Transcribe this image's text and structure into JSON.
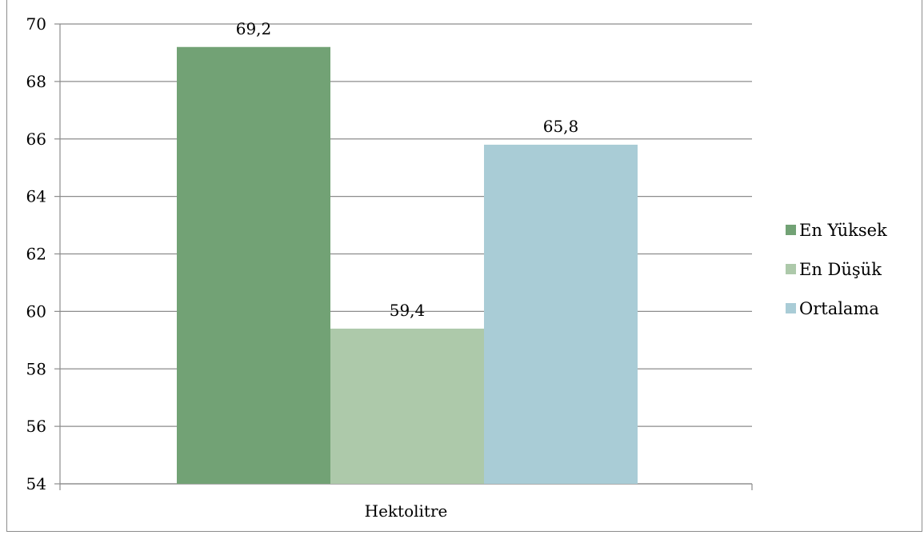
{
  "chart_data": {
    "type": "bar",
    "title": "",
    "xlabel": "",
    "ylabel": "",
    "categories": [
      "Hektolitre"
    ],
    "series": [
      {
        "name": "En Yüksek",
        "values": [
          69.2
        ],
        "label": "69,2",
        "color": "#72a275"
      },
      {
        "name": "En Düşük",
        "values": [
          59.4
        ],
        "label": "59,4",
        "color": "#adc9aa"
      },
      {
        "name": "Ortalama",
        "values": [
          65.8
        ],
        "label": "65,8",
        "color": "#a9ccd6"
      }
    ],
    "ylim": [
      54,
      70
    ],
    "yticks": [
      54,
      56,
      58,
      60,
      62,
      64,
      66,
      68,
      70
    ],
    "grid": true,
    "legend_position": "right"
  }
}
